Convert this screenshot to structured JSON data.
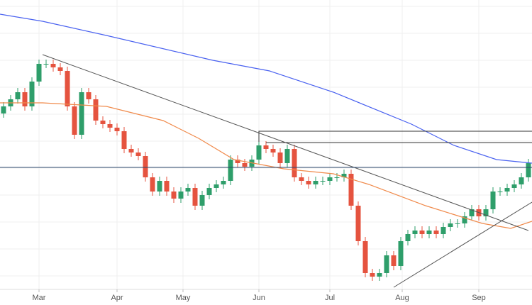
{
  "chart_data": {
    "type": "candlestick",
    "xlim": [
      0,
      75
    ],
    "ylim": [
      0,
      408
    ],
    "xticks": [
      {
        "value": 5.5,
        "label": "Mar"
      },
      {
        "value": 16.5,
        "label": "Apr"
      },
      {
        "value": 25.8,
        "label": "May"
      },
      {
        "value": 36.5,
        "label": "Jun"
      },
      {
        "value": 46.5,
        "label": "Jul"
      },
      {
        "value": 56.7,
        "label": "Aug"
      },
      {
        "value": 67.5,
        "label": "Sep"
      }
    ],
    "yticks": [
      19,
      57,
      95,
      133,
      171,
      209,
      247,
      285,
      323,
      361,
      399
    ],
    "grid": true,
    "up_color": "#2e9e6a",
    "down_color": "#e5533f",
    "open": [
      248,
      258,
      268,
      278,
      258,
      293,
      318,
      318,
      313,
      308,
      258,
      218,
      278,
      268,
      238,
      233,
      228,
      223,
      198,
      193,
      188,
      158,
      138,
      153,
      138,
      128,
      138,
      143,
      118,
      133,
      143,
      148,
      153,
      183,
      178,
      173,
      183,
      203,
      198,
      193,
      178,
      198,
      158,
      153,
      148,
      153,
      153,
      158,
      158,
      163,
      118,
      68,
      23,
      18,
      23,
      48,
      33,
      68,
      78,
      83,
      78,
      83,
      78,
      88,
      93,
      93,
      103,
      113,
      103,
      113,
      138,
      138,
      143,
      148,
      158
    ],
    "high": [
      264,
      274,
      284,
      284,
      299,
      324,
      324,
      324,
      319,
      314,
      264,
      284,
      284,
      274,
      244,
      239,
      234,
      229,
      204,
      199,
      194,
      164,
      159,
      159,
      144,
      144,
      149,
      149,
      139,
      149,
      154,
      159,
      189,
      189,
      184,
      189,
      209,
      209,
      204,
      199,
      204,
      204,
      164,
      159,
      159,
      159,
      164,
      164,
      169,
      169,
      124,
      74,
      29,
      29,
      54,
      54,
      74,
      84,
      89,
      89,
      89,
      89,
      94,
      99,
      99,
      109,
      119,
      119,
      119,
      144,
      144,
      149,
      154,
      164,
      184
    ],
    "low": [
      242,
      252,
      262,
      252,
      252,
      287,
      312,
      307,
      302,
      252,
      212,
      212,
      262,
      232,
      227,
      222,
      217,
      192,
      187,
      182,
      152,
      132,
      132,
      132,
      122,
      122,
      132,
      112,
      112,
      127,
      137,
      142,
      147,
      172,
      167,
      167,
      177,
      192,
      187,
      172,
      172,
      152,
      147,
      142,
      142,
      147,
      147,
      152,
      152,
      112,
      62,
      17,
      12,
      12,
      17,
      27,
      27,
      62,
      72,
      72,
      72,
      72,
      72,
      82,
      87,
      87,
      97,
      97,
      97,
      107,
      132,
      132,
      137,
      142,
      152
    ],
    "close": [
      258,
      268,
      278,
      258,
      293,
      318,
      318,
      313,
      308,
      258,
      218,
      278,
      268,
      238,
      233,
      228,
      223,
      198,
      193,
      188,
      158,
      138,
      153,
      138,
      128,
      138,
      143,
      118,
      133,
      143,
      148,
      153,
      183,
      178,
      173,
      183,
      203,
      198,
      193,
      178,
      198,
      158,
      153,
      148,
      153,
      153,
      158,
      158,
      163,
      118,
      68,
      23,
      18,
      23,
      48,
      33,
      68,
      78,
      83,
      78,
      83,
      78,
      88,
      93,
      93,
      103,
      113,
      103,
      113,
      138,
      138,
      143,
      148,
      158,
      178
    ],
    "series": [
      {
        "color": "#4a62f0",
        "x": [
          0,
          6,
          15,
          30,
          38,
          47,
          58,
          64,
          70,
          75
        ],
        "values": [
          388,
          378,
          358,
          323,
          308,
          278,
          233,
          203,
          183,
          178
        ]
      },
      {
        "color": "#f08a4b",
        "x": [
          0,
          6,
          15,
          23,
          28,
          33,
          40,
          47,
          52,
          60,
          68,
          72,
          75
        ],
        "values": [
          263,
          263,
          258,
          238,
          213,
          183,
          170,
          163,
          148,
          118,
          93,
          86,
          96
        ]
      }
    ],
    "lines": [
      {
        "color": "#555555",
        "x": [
          6,
          74.5
        ],
        "y": [
          331,
          83
        ]
      },
      {
        "color": "#555555",
        "x": [
          55.5,
          75
        ],
        "y": [
          3,
          123
        ]
      },
      {
        "color": "#333333",
        "x": [
          36.5,
          36.5,
          75
        ],
        "y": [
          208,
          223,
          223
        ]
      },
      {
        "color": "#333333",
        "x": [
          37.5,
          75
        ],
        "y": [
          207,
          207
        ]
      },
      {
        "color": "#2c4a6e",
        "x": [
          0,
          75
        ],
        "y": [
          172,
          172
        ]
      }
    ]
  }
}
